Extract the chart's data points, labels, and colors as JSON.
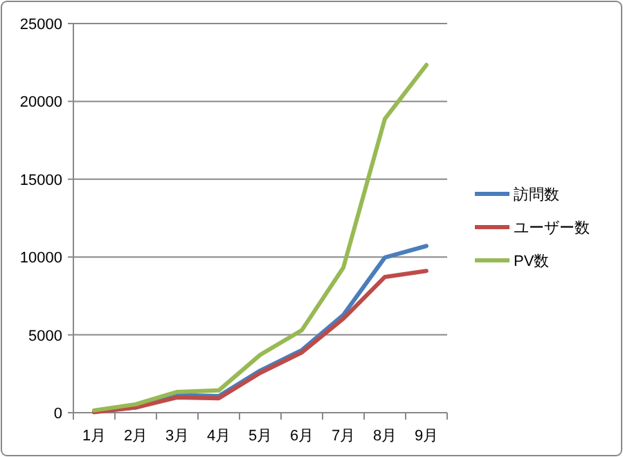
{
  "chart_data": {
    "type": "line",
    "categories": [
      "1月",
      "2月",
      "3月",
      "4月",
      "5月",
      "6月",
      "7月",
      "8月",
      "9月"
    ],
    "series": [
      {
        "name": "訪問数",
        "color": "#4a7ebb",
        "values": [
          90,
          330,
          1130,
          1070,
          2710,
          4020,
          6280,
          9970,
          10710
        ]
      },
      {
        "name": "ユーザー数",
        "color": "#be4b48",
        "values": [
          30,
          330,
          980,
          920,
          2560,
          3870,
          6040,
          8720,
          9110
        ]
      },
      {
        "name": "PV数",
        "color": "#98b954",
        "values": [
          150,
          540,
          1340,
          1430,
          3720,
          5300,
          9320,
          18880,
          22340
        ]
      }
    ],
    "ylim": [
      0,
      25000
    ],
    "yticks": [
      0,
      5000,
      10000,
      15000,
      20000,
      25000
    ],
    "grid": "y",
    "legend": "right",
    "marker": "none",
    "line_style": "solid"
  }
}
